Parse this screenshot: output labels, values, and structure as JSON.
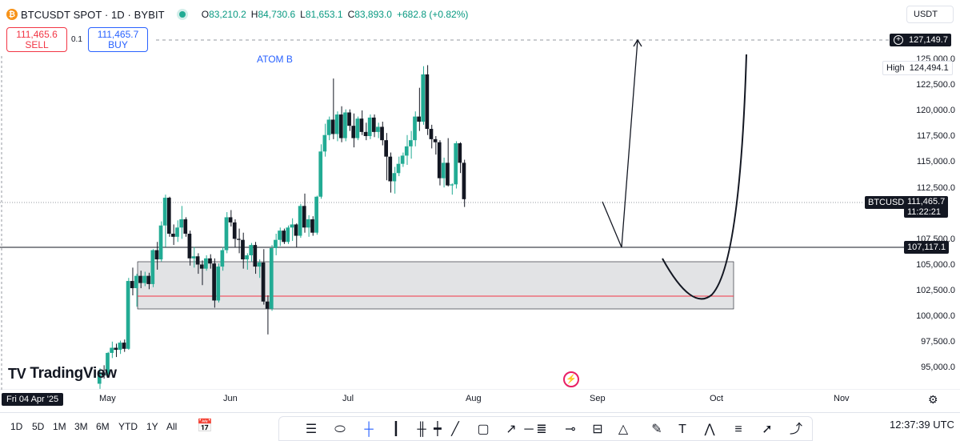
{
  "header": {
    "symbol_title": "BTCUSDT SPOT · 1D · BYBIT",
    "ohlc": [
      {
        "k": "O",
        "v": "83,210.2"
      },
      {
        "k": "H",
        "v": "84,730.6"
      },
      {
        "k": "L",
        "v": "81,653.1"
      },
      {
        "k": "C",
        "v": "83,893.0"
      }
    ],
    "change": "+682.8 (+0.82%)"
  },
  "trade": {
    "sell_price": "111,465.6",
    "sell_label": "SELL",
    "spread": "0.1",
    "buy_price": "111,465.7",
    "buy_label": "BUY"
  },
  "currency_button": "USDT",
  "annotation": "ATOM B",
  "price_axis": {
    "ticks": [
      {
        "label": "125,000.0",
        "value": 125000
      },
      {
        "label": "122,500.0",
        "value": 122500
      },
      {
        "label": "120,000.0",
        "value": 120000
      },
      {
        "label": "117,500.0",
        "value": 117500
      },
      {
        "label": "115,000.0",
        "value": 115000
      },
      {
        "label": "112,500.0",
        "value": 112500
      },
      {
        "label": "107,500.0",
        "value": 107500
      },
      {
        "label": "105,000.0",
        "value": 105000
      },
      {
        "label": "102,500.0",
        "value": 102500
      },
      {
        "label": "100,000.0",
        "value": 100000
      },
      {
        "label": "97,500.0",
        "value": 97500
      },
      {
        "label": "95,000.0",
        "value": 95000
      }
    ],
    "crosshair_price": "127,149.7",
    "high_label": "High",
    "high_value": "124,494.1",
    "symbol_tag": "BTCUSDT",
    "last_price": "111,465.7",
    "countdown": "11:22:21",
    "line_price": "107,117.1"
  },
  "time_axis": [
    "May",
    "Jun",
    "Jul",
    "Aug",
    "Sep",
    "Oct",
    "Nov"
  ],
  "cursor_date": "Fri 04 Apr '25",
  "logo_text": "TradingView",
  "timeframes": [
    "1D",
    "5D",
    "1M",
    "3M",
    "6M",
    "YTD",
    "1Y",
    "All"
  ],
  "clock": "12:37:39 UTC",
  "colors": {
    "up": "#22ab94",
    "down": "#131722",
    "sell": "#f23645",
    "buy": "#2962ff",
    "zone": "#d1d4dc"
  },
  "icons": [
    "calendar-range-icon",
    "horizontal-line-icon",
    "ellipse-icon",
    "crosshair-icon",
    "vertical-line-icon",
    "bars-icon",
    "candles-icon",
    "trendline-icon",
    "rectangle-icon",
    "ray-icon",
    "parallel-channel-icon",
    "long-position-icon",
    "triangle-icon",
    "brush-icon",
    "text-icon",
    "head-shoulders-icon",
    "fib-icon",
    "arrow-icon",
    "path-icon"
  ]
}
